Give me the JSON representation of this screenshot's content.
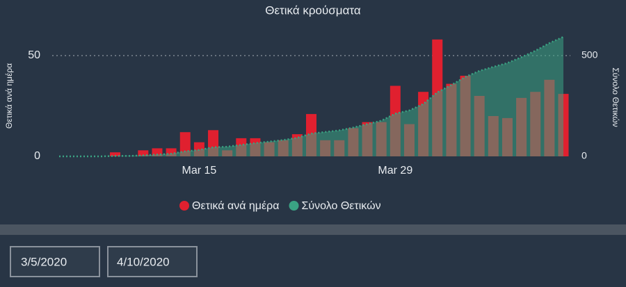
{
  "chart_data": {
    "type": "bar",
    "title": "Θετικά κρούσματα",
    "y_label": "Θετικά ανά ημέρα",
    "y2_label": "Σύνολο Θετικών",
    "categories": [
      null,
      null,
      null,
      null,
      null,
      null,
      null,
      null,
      null,
      null,
      "Mar 15",
      null,
      null,
      null,
      null,
      null,
      null,
      null,
      null,
      null,
      null,
      null,
      null,
      null,
      "Mar 29",
      null,
      null,
      null,
      null,
      null,
      null,
      null,
      null,
      null,
      null,
      null,
      null
    ],
    "series": [
      {
        "name": "Θετικά ανά ημέρα",
        "color": "#e0202f",
        "type": "bar",
        "values": [
          0,
          0,
          0,
          0,
          2,
          0,
          3,
          4,
          4,
          12,
          7,
          13,
          3,
          9,
          9,
          7,
          8,
          11,
          21,
          8,
          8,
          14,
          17,
          17,
          35,
          16,
          32,
          58,
          36,
          40,
          30,
          20,
          19,
          29,
          32,
          38,
          31
        ]
      },
      {
        "name": "Σύνολο Θετικών",
        "color": "#3aa383",
        "type": "area",
        "axis": "y2",
        "values": [
          0,
          0,
          0,
          0,
          2,
          2,
          5,
          9,
          13,
          25,
          32,
          45,
          48,
          57,
          66,
          73,
          81,
          92,
          113,
          121,
          129,
          143,
          160,
          177,
          212,
          228,
          260,
          318,
          354,
          394,
          424,
          444,
          463,
          492,
          524,
          562,
          593
        ]
      }
    ],
    "ylim": [
      0,
      60
    ],
    "yticks": [
      0,
      50
    ],
    "y2lim": [
      0,
      600
    ],
    "y2ticks": [
      0,
      500
    ],
    "grid": true
  },
  "date_filter": {
    "start": "3/5/2020",
    "end": "4/10/2020"
  }
}
